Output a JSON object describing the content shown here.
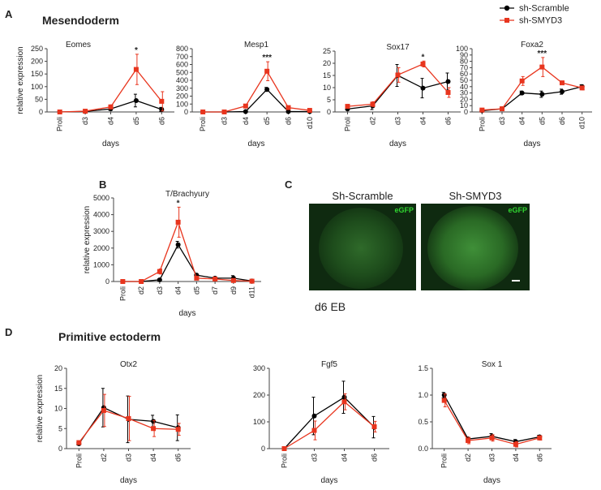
{
  "panel_labels": [
    "A",
    "B",
    "C",
    "D"
  ],
  "sections": [
    "Mesendoderm",
    "Primitive ectoderm"
  ],
  "legend": [
    {
      "name": "sh-Scramble",
      "color": "#000000"
    },
    {
      "name": "sh-SMYD3",
      "color": "#e8351e"
    }
  ],
  "images": {
    "labels": [
      "Sh-Scramble",
      "Sh-SMYD3"
    ],
    "channel": "eGFP",
    "caption": "d6 EB"
  },
  "chart_data": [
    {
      "type": "line",
      "title": "Eomes",
      "ylabel": "relative expression",
      "xlabel": "days",
      "annotation": "*",
      "annotation_at": "d5",
      "categories": [
        "Proli",
        "d3",
        "d4",
        "d5",
        "d6"
      ],
      "ylim": [
        0,
        250
      ],
      "yticks": [
        0,
        50,
        100,
        150,
        200,
        250
      ],
      "series": [
        {
          "color": "#000000",
          "values": [
            0,
            2,
            12,
            45,
            10
          ],
          "errors": [
            0,
            1,
            5,
            25,
            8
          ]
        },
        {
          "color": "#e8351e",
          "values": [
            0,
            3,
            20,
            168,
            42
          ],
          "errors": [
            0,
            2,
            8,
            60,
            38
          ]
        }
      ]
    },
    {
      "type": "line",
      "title": "Mesp1",
      "xlabel": "days",
      "annotation": "***",
      "annotation_at": "d5",
      "categories": [
        "Proli",
        "d3",
        "d4",
        "d5",
        "d6",
        "d10"
      ],
      "ylim": [
        0,
        800
      ],
      "yticks": [
        0,
        100,
        200,
        300,
        400,
        500,
        600,
        700,
        800
      ],
      "series": [
        {
          "color": "#000000",
          "values": [
            0,
            0,
            5,
            285,
            5,
            5
          ],
          "errors": [
            0,
            0,
            3,
            25,
            3,
            3
          ]
        },
        {
          "color": "#e8351e",
          "values": [
            0,
            0,
            75,
            515,
            55,
            20
          ],
          "errors": [
            0,
            0,
            20,
            120,
            10,
            5
          ]
        }
      ]
    },
    {
      "type": "line",
      "title": "Sox17",
      "xlabel": "days",
      "annotation": "*",
      "annotation_at": "d4",
      "categories": [
        "Proli",
        "d2",
        "d3",
        "d4",
        "d6"
      ],
      "ylim": [
        0,
        25
      ],
      "yticks": [
        0,
        5,
        10,
        15,
        20,
        25
      ],
      "series": [
        {
          "color": "#000000",
          "values": [
            1.2,
            2.5,
            15,
            9.8,
            12.5
          ],
          "errors": [
            0.3,
            1.5,
            4.5,
            4,
            3.5
          ]
        },
        {
          "color": "#e8351e",
          "values": [
            2.3,
            3.2,
            15.2,
            19.7,
            8
          ],
          "errors": [
            0.8,
            1,
            3,
            1.2,
            2
          ]
        }
      ]
    },
    {
      "type": "line",
      "title": "Foxa2",
      "xlabel": "days",
      "annotation": "***",
      "annotation_at": "d5",
      "categories": [
        "Proli",
        "d3",
        "d4",
        "d5",
        "d6",
        "d10"
      ],
      "ylim": [
        0,
        100
      ],
      "yticks": [
        0,
        10,
        20,
        30,
        40,
        50,
        60,
        70,
        80,
        90,
        100
      ],
      "series": [
        {
          "color": "#000000",
          "values": [
            2,
            5,
            30,
            28,
            32,
            40
          ],
          "errors": [
            1,
            1,
            3,
            5,
            4,
            3
          ]
        },
        {
          "color": "#e8351e",
          "values": [
            3,
            5,
            49,
            71,
            46,
            38
          ],
          "errors": [
            2,
            1,
            7,
            15,
            2,
            3
          ]
        }
      ]
    },
    {
      "type": "line",
      "title": "T/Brachyury",
      "ylabel": "relative expression",
      "xlabel": "days",
      "annotation": "*",
      "annotation_at": "d4",
      "categories": [
        "Proli",
        "d2",
        "d3",
        "d4",
        "d5",
        "d7",
        "d9",
        "d11"
      ],
      "ylim": [
        0,
        5000
      ],
      "yticks": [
        0,
        1000,
        2000,
        3000,
        4000,
        5000
      ],
      "series": [
        {
          "color": "#000000",
          "values": [
            0,
            0,
            100,
            2200,
            380,
            200,
            200,
            30
          ],
          "errors": [
            0,
            0,
            50,
            200,
            50,
            50,
            150,
            20
          ]
        },
        {
          "color": "#e8351e",
          "values": [
            0,
            0,
            600,
            3550,
            200,
            150,
            60,
            20
          ],
          "errors": [
            0,
            0,
            150,
            900,
            100,
            80,
            40,
            10
          ]
        }
      ]
    },
    {
      "type": "line",
      "title": "Otx2",
      "ylabel": "relative expression",
      "xlabel": "days",
      "categories": [
        "Proli",
        "d2",
        "d3",
        "d4",
        "d6"
      ],
      "ylim": [
        0,
        20
      ],
      "yticks": [
        0,
        5,
        10,
        15,
        20
      ],
      "series": [
        {
          "color": "#000000",
          "values": [
            1.2,
            10.2,
            7.3,
            6.8,
            5.2
          ],
          "errors": [
            0.3,
            4.8,
            5.8,
            1.5,
            3.2
          ]
        },
        {
          "color": "#e8351e",
          "values": [
            1.5,
            9.5,
            7.5,
            5,
            4.8
          ],
          "errors": [
            0.3,
            4,
            5.5,
            2,
            1.5
          ]
        }
      ]
    },
    {
      "type": "line",
      "title": "Fgf5",
      "xlabel": "days",
      "categories": [
        "Proli",
        "d3",
        "d4",
        "d6"
      ],
      "ylim": [
        0,
        300
      ],
      "yticks": [
        0,
        100,
        200,
        300
      ],
      "series": [
        {
          "color": "#000000",
          "values": [
            0,
            122,
            192,
            80
          ],
          "errors": [
            0,
            70,
            60,
            40
          ]
        },
        {
          "color": "#e8351e",
          "values": [
            0,
            68,
            175,
            82
          ],
          "errors": [
            0,
            35,
            30,
            20
          ]
        }
      ]
    },
    {
      "type": "line",
      "title": "Sox 1",
      "xlabel": "days",
      "categories": [
        "Proli",
        "d2",
        "d3",
        "d4",
        "d6"
      ],
      "ylim": [
        0,
        1.5
      ],
      "yticks": [
        {
          "value": 0,
          "label": "0.0"
        },
        {
          "value": 0.5,
          "label": "0.5"
        },
        {
          "value": 1,
          "label": "1.0"
        },
        {
          "value": 1.5,
          "label": "1.5"
        }
      ],
      "series": [
        {
          "color": "#000000",
          "values": [
            1.0,
            0.18,
            0.23,
            0.13,
            0.22
          ],
          "errors": [
            0.05,
            0.04,
            0.05,
            0.04,
            0.03
          ]
        },
        {
          "color": "#e8351e",
          "values": [
            0.9,
            0.15,
            0.2,
            0.08,
            0.2
          ],
          "errors": [
            0.12,
            0.06,
            0.06,
            0.05,
            0.04
          ]
        }
      ]
    }
  ]
}
